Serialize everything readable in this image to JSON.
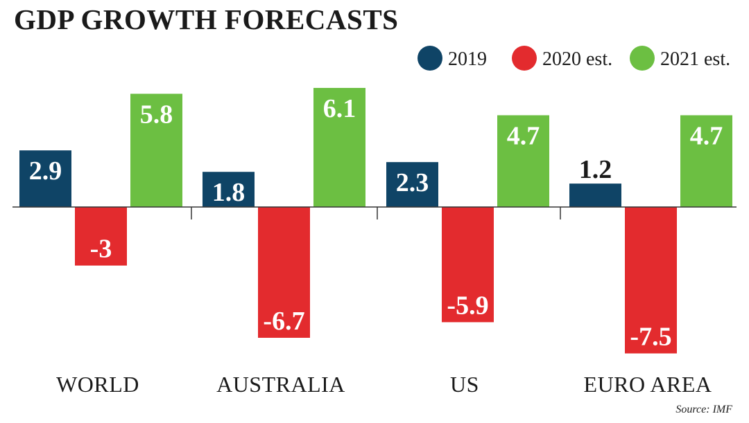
{
  "chart_data": {
    "type": "bar",
    "title": "GDP GROWTH FORECASTS",
    "source": "Source: IMF",
    "categories": [
      "WORLD",
      "AUSTRALIA",
      "US",
      "EURO AREA"
    ],
    "series": [
      {
        "name": "2019",
        "color": "#0f4466",
        "values": [
          2.9,
          1.8,
          2.3,
          1.2
        ]
      },
      {
        "name": "2020 est.",
        "color": "#e32b2e",
        "values": [
          -3,
          -6.7,
          -5.9,
          -7.5
        ]
      },
      {
        "name": "2021 est.",
        "color": "#6cbf42",
        "values": [
          5.8,
          6.1,
          4.7,
          4.7
        ]
      }
    ],
    "value_labels": [
      [
        "2.9",
        "1.8",
        "2.3",
        "1.2"
      ],
      [
        "-3",
        "-6.7",
        "-5.9",
        "-7.5"
      ],
      [
        "5.8",
        "6.1",
        "4.7",
        "4.7"
      ]
    ],
    "ylim": [
      -7.5,
      6.1
    ],
    "legend_position": "top-right",
    "grid": false
  }
}
